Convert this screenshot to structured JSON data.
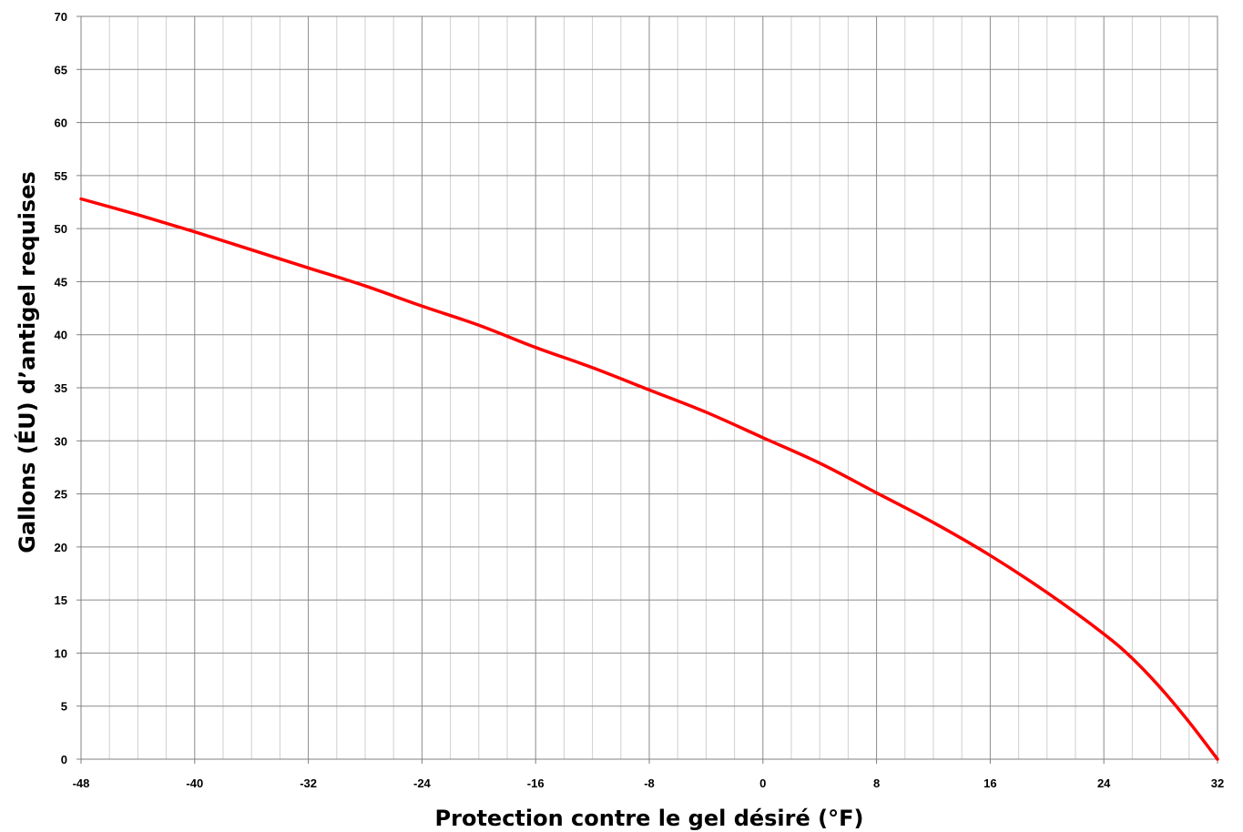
{
  "chart_data": {
    "type": "line",
    "title": "",
    "xlabel": "Protection contre  le gel désiré  (°F)",
    "ylabel": "Gallons (ÉU) d’antigel requises",
    "xlim": [
      -48,
      32
    ],
    "ylim": [
      0,
      70
    ],
    "x_ticks": [
      -48,
      -40,
      -32,
      -24,
      -16,
      -8,
      0,
      8,
      16,
      24,
      32
    ],
    "y_ticks": [
      0,
      5,
      10,
      15,
      20,
      25,
      30,
      35,
      40,
      45,
      50,
      55,
      60,
      65,
      70
    ],
    "x_tick_labels": [
      "-48",
      "-40",
      "-32",
      "-24",
      "-16",
      "-8",
      "0",
      "8",
      "16",
      "24",
      "32"
    ],
    "y_tick_labels": [
      "0",
      "5",
      "10",
      "15",
      "20",
      "25",
      "30",
      "35",
      "40",
      "45",
      "50",
      "55",
      "60",
      "65",
      "70"
    ],
    "grid": true,
    "series": [
      {
        "color": "#ff0000",
        "x": [
          -48,
          -44,
          -40,
          -36,
          -32,
          -28,
          -24,
          -20,
          -16,
          -12,
          -8,
          -4,
          0,
          4,
          8,
          12,
          16,
          20,
          24,
          26,
          28,
          30,
          32
        ],
        "y": [
          52.8,
          51.3,
          49.7,
          48.0,
          46.3,
          44.6,
          42.7,
          40.9,
          38.8,
          36.9,
          34.8,
          32.7,
          30.3,
          27.9,
          25.1,
          22.3,
          19.2,
          15.7,
          11.8,
          9.5,
          6.7,
          3.5,
          0.0
        ]
      }
    ]
  }
}
